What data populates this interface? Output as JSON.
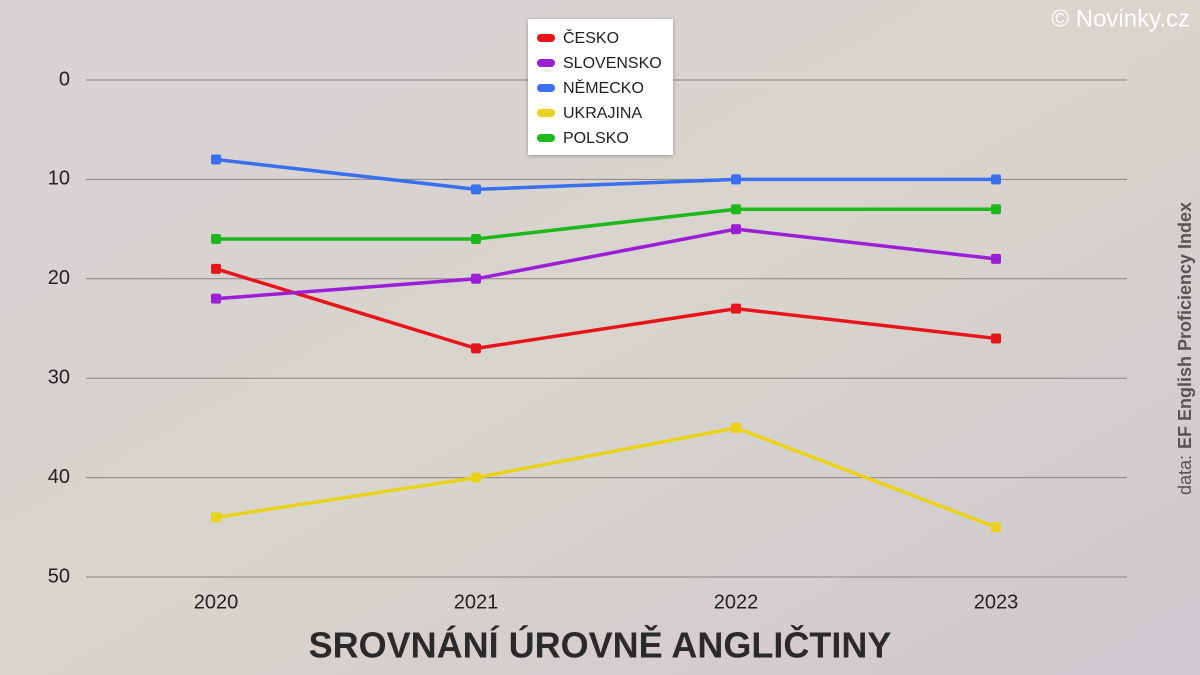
{
  "chart_data": {
    "type": "line",
    "title": "SROVNÁNÍ ÚROVNĚ ANGLIČTINY",
    "copyright": "© Novinky.cz",
    "source_prefix": "data:",
    "source": "EF English Proficiency Index",
    "categories": [
      "2020",
      "2021",
      "2022",
      "2023"
    ],
    "series": [
      {
        "name": "ČESKO",
        "color": "#e8141c",
        "values": [
          19,
          27,
          23,
          26
        ]
      },
      {
        "name": "SLOVENSKO",
        "color": "#9a1fd6",
        "values": [
          22,
          20,
          15,
          18
        ]
      },
      {
        "name": "NĚMECKO",
        "color": "#3a6ff0",
        "values": [
          8,
          11,
          10,
          10
        ]
      },
      {
        "name": "UKRAJINA",
        "color": "#e8d31a",
        "values": [
          44,
          40,
          35,
          45
        ]
      },
      {
        "name": "POLSKO",
        "color": "#1cb81c",
        "values": [
          16,
          16,
          13,
          13
        ]
      }
    ],
    "ylim": [
      0,
      50
    ],
    "y_inverted": true,
    "yticks": [
      0,
      10,
      20,
      30,
      40,
      50
    ],
    "grid": true,
    "legend": "top"
  }
}
